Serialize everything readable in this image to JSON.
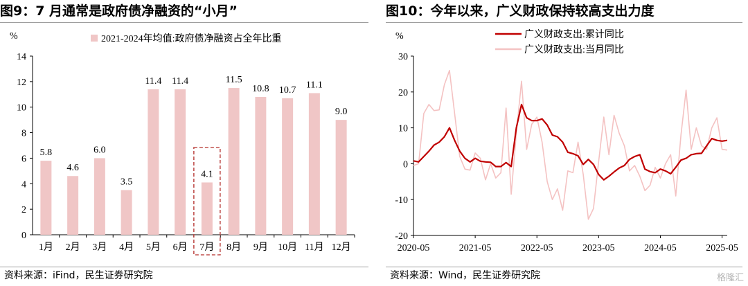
{
  "left": {
    "title": "图9：7 月通常是政府债净融资的“小月”",
    "source": "资料来源：iFind，民生证券研究院",
    "chart_data": {
      "type": "bar",
      "ylabel": "%",
      "ylim": [
        0,
        14
      ],
      "yticks": [
        "0",
        "2",
        "4",
        "6",
        "8",
        "10",
        "12",
        "14"
      ],
      "categories": [
        "1月",
        "2月",
        "3月",
        "4月",
        "5月",
        "6月",
        "7月",
        "8月",
        "9月",
        "10月",
        "11月",
        "12月"
      ],
      "value_labels": [
        "5.8",
        "4.6",
        "6.0",
        "3.5",
        "11.4",
        "11.4",
        "4.1",
        "11.5",
        "10.8",
        "10.7",
        "11.1",
        "9.0"
      ],
      "series": [
        {
          "name": "2021-2024年均值:政府债净融资占全年比重",
          "values": [
            5.8,
            4.6,
            6.0,
            3.5,
            11.4,
            11.4,
            4.1,
            11.5,
            10.8,
            10.7,
            11.1,
            9.0
          ]
        }
      ],
      "highlight_category": "7月",
      "bar_color": "#f0c6c6",
      "highlight_color": "#c0504d",
      "legend_position": "top-center",
      "grid": false
    }
  },
  "right": {
    "title": "图10：今年以来，广义财政保持较高支出力度",
    "source": "资料来源：Wind，民生证券研究院",
    "watermark": "格隆汇",
    "chart_data": {
      "type": "line",
      "ylabel": "%",
      "ylim": [
        -20,
        30
      ],
      "yticks": [
        "-20",
        "-10",
        "0",
        "10",
        "20",
        "30"
      ],
      "xticks": [
        "2020-05",
        "2021-05",
        "2022-05",
        "2023-05",
        "2024-05",
        "2025-05"
      ],
      "x_range": [
        "2020-05",
        "2025-06"
      ],
      "legend_position": "top-left",
      "grid": false,
      "series": [
        {
          "name": "广义财政支出:累计同比",
          "color": "#c00000",
          "x": [
            "2020-05",
            "2020-06",
            "2020-07",
            "2020-08",
            "2020-09",
            "2020-10",
            "2020-11",
            "2020-12",
            "2021-01",
            "2021-02",
            "2021-03",
            "2021-04",
            "2021-05",
            "2021-06",
            "2021-07",
            "2021-08",
            "2021-09",
            "2021-10",
            "2021-11",
            "2021-12",
            "2022-01",
            "2022-02",
            "2022-03",
            "2022-04",
            "2022-05",
            "2022-06",
            "2022-07",
            "2022-08",
            "2022-09",
            "2022-10",
            "2022-11",
            "2022-12",
            "2023-01",
            "2023-02",
            "2023-03",
            "2023-04",
            "2023-05",
            "2023-06",
            "2023-07",
            "2023-08",
            "2023-09",
            "2023-10",
            "2023-11",
            "2023-12",
            "2024-01",
            "2024-02",
            "2024-03",
            "2024-04",
            "2024-05",
            "2024-06",
            "2024-07",
            "2024-08",
            "2024-09",
            "2024-10",
            "2024-11",
            "2024-12",
            "2025-01",
            "2025-02",
            "2025-03",
            "2025-04",
            "2025-05",
            "2025-06"
          ],
          "y": [
            0.8,
            0.5,
            2.0,
            3.5,
            5.2,
            6.0,
            7.5,
            10.0,
            6.5,
            3.5,
            1.5,
            0.5,
            1.5,
            0.7,
            0.5,
            0.4,
            -0.8,
            -0.8,
            0.3,
            -0.8,
            10.0,
            16.5,
            12.8,
            12.0,
            12.0,
            12.5,
            10.8,
            8.0,
            7.5,
            6.0,
            3.2,
            2.8,
            2.2,
            -0.2,
            1.2,
            -0.2,
            -3.0,
            -4.5,
            -3.5,
            -2.3,
            -1.2,
            -0.5,
            1.2,
            2.0,
            2.5,
            -1.5,
            -2.2,
            -2.5,
            -1.5,
            -2.0,
            -2.8,
            -1.0,
            1.0,
            1.5,
            2.5,
            2.8,
            2.9,
            5.0,
            7.0,
            6.5,
            6.3,
            6.5
          ]
        },
        {
          "name": "广义财政支出:当月同比",
          "color": "#f4c2c2",
          "x": [
            "2020-05",
            "2020-06",
            "2020-07",
            "2020-08",
            "2020-09",
            "2020-10",
            "2020-11",
            "2020-12",
            "2021-01",
            "2021-02",
            "2021-03",
            "2021-04",
            "2021-05",
            "2021-06",
            "2021-07",
            "2021-08",
            "2021-09",
            "2021-10",
            "2021-11",
            "2021-12",
            "2022-01",
            "2022-02",
            "2022-03",
            "2022-04",
            "2022-05",
            "2022-06",
            "2022-07",
            "2022-08",
            "2022-09",
            "2022-10",
            "2022-11",
            "2022-12",
            "2023-01",
            "2023-02",
            "2023-03",
            "2023-04",
            "2023-05",
            "2023-06",
            "2023-07",
            "2023-08",
            "2023-09",
            "2023-10",
            "2023-11",
            "2023-12",
            "2024-01",
            "2024-02",
            "2024-03",
            "2024-04",
            "2024-05",
            "2024-06",
            "2024-07",
            "2024-08",
            "2024-09",
            "2024-10",
            "2024-11",
            "2024-12",
            "2025-01",
            "2025-02",
            "2025-03",
            "2025-04",
            "2025-05",
            "2025-06"
          ],
          "y": [
            -0.5,
            0.0,
            14.0,
            16.5,
            14.8,
            15.0,
            22.0,
            26.0,
            14.0,
            2.0,
            -1.5,
            -1.8,
            3.0,
            1.5,
            -4.5,
            0.0,
            -4.0,
            -2.5,
            15.5,
            -8.5,
            8.5,
            23.0,
            4.0,
            11.0,
            13.0,
            6.0,
            -5.0,
            -10.0,
            -7.0,
            -13.0,
            -2.0,
            -2.5,
            6.0,
            -3.0,
            -15.5,
            -12.5,
            0.5,
            13.0,
            2.5,
            13.5,
            8.5,
            5.0,
            -2.0,
            -0.5,
            -3.5,
            -7.5,
            -6.0,
            -1.0,
            -4.0,
            0.0,
            2.5,
            -9.0,
            8.0,
            20.5,
            4.0,
            10.0,
            5.0,
            4.0,
            10.0,
            12.8,
            4.0,
            3.8
          ]
        }
      ]
    }
  }
}
